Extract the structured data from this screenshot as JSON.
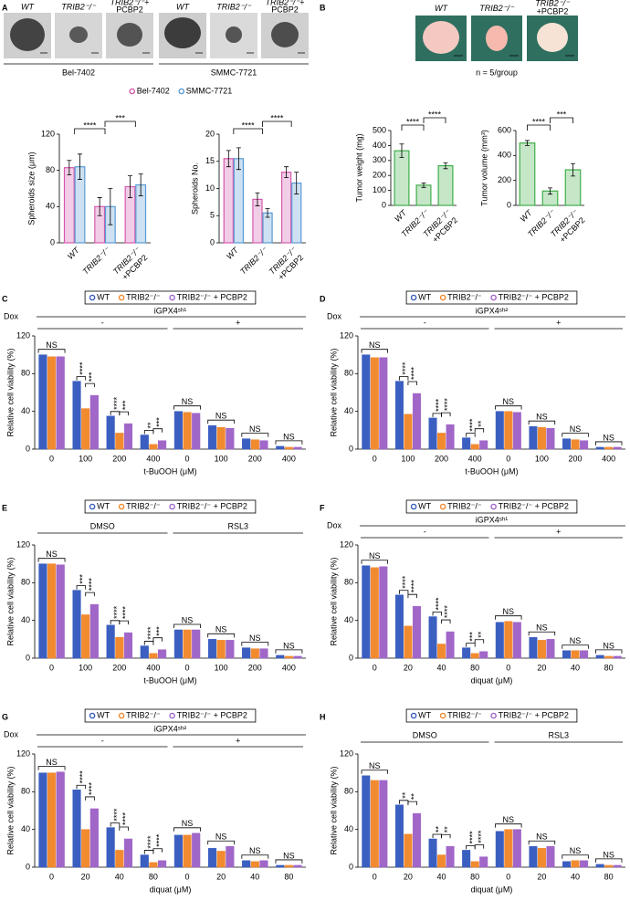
{
  "panel_labels": [
    "A",
    "B",
    "C",
    "D",
    "E",
    "F",
    "G",
    "H"
  ],
  "panel_a": {
    "image_labels": [
      [
        "WT"
      ],
      [
        "TRIB2⁻/⁻"
      ],
      [
        "TRIB2⁻/⁻+",
        "PCBP2"
      ],
      [
        "WT"
      ],
      [
        "TRIB2⁻/⁻"
      ],
      [
        "TRIB2⁻/⁻+",
        "PCBP2"
      ]
    ],
    "cell_lines": [
      "Bel-7402",
      "SMMC-7721"
    ]
  },
  "panel_b": {
    "image_labels": [
      [
        "WT"
      ],
      [
        "TRIB2⁻/⁻"
      ],
      [
        "TRIB2⁻/⁻",
        "+PCBP2"
      ]
    ],
    "note": "n = 5/group"
  },
  "chart_data": [
    {
      "type": "bar",
      "y_label": "Spheroids size (μm)",
      "categories": [
        "WT",
        "TRIB2⁻/⁻",
        [
          "TRIB2⁻/⁻",
          "+PCBP2"
        ]
      ],
      "series": [
        {
          "name": "Bel-7402",
          "color": "#d45aae",
          "values": [
            83,
            40,
            62
          ],
          "errors": [
            8,
            10,
            12
          ]
        },
        {
          "name": "SMMC-7721",
          "color": "#5b9bd5",
          "values": [
            84,
            40,
            64
          ],
          "errors": [
            14,
            20,
            12
          ]
        }
      ],
      "ylim": [
        0,
        120
      ],
      "yticks": [
        0,
        40,
        80,
        120
      ],
      "bar_style": "outline",
      "rotate_x_labels": true,
      "significance": [
        "****",
        "***"
      ],
      "legend": "top"
    },
    {
      "type": "bar",
      "y_label": "Spheroids No.",
      "categories": [
        "WT",
        "TRIB2⁻/⁻",
        [
          "TRIB2⁻/⁻",
          "+PCBP2"
        ]
      ],
      "series": [
        {
          "name": "Bel-7402",
          "color": "#d45aae",
          "values": [
            15.5,
            8,
            13
          ],
          "errors": [
            1.5,
            1.2,
            1
          ]
        },
        {
          "name": "SMMC-7721",
          "color": "#5b9bd5",
          "values": [
            15.5,
            5.5,
            11
          ],
          "errors": [
            2,
            0.8,
            2
          ]
        }
      ],
      "ylim": [
        0,
        20
      ],
      "yticks": [
        0,
        5,
        10,
        15,
        20
      ],
      "bar_style": "outline",
      "rotate_x_labels": true,
      "significance": [
        "****",
        "****"
      ]
    },
    {
      "type": "bar",
      "y_label": "Tumor weight (mg)",
      "categories": [
        "WT",
        "TRIB2⁻/⁻",
        [
          "TRIB2⁻/⁻",
          "+PCBP2"
        ]
      ],
      "values": [
        365,
        135,
        265
      ],
      "errors": [
        45,
        15,
        20
      ],
      "color": "#3fae49",
      "ylim": [
        0,
        500
      ],
      "yticks": [
        0,
        100,
        200,
        300,
        400,
        500
      ],
      "bar_style": "outline",
      "rotate_x_labels": true,
      "significance": [
        "****",
        "****"
      ]
    },
    {
      "type": "bar",
      "y_label": "Tumor volume (mm³)",
      "categories": [
        "WT",
        "TRIB2⁻/⁻",
        [
          "TRIB2⁻/⁻",
          "+PCBP2"
        ]
      ],
      "values": [
        500,
        115,
        285
      ],
      "errors": [
        20,
        25,
        50
      ],
      "color": "#3fae49",
      "ylim": [
        0,
        600
      ],
      "yticks": [
        0,
        200,
        400,
        600
      ],
      "bar_style": "outline",
      "rotate_x_labels": true,
      "significance": [
        "****",
        "***"
      ]
    },
    {
      "type": "bar",
      "y_label": "Relative cell viability (%)",
      "x_label": "t-BuOOH (μM)",
      "categories": [
        "0",
        "100",
        "200",
        "400",
        "0",
        "100",
        "200",
        "400"
      ],
      "series": [
        {
          "name": "WT",
          "color": "#3b5fc0",
          "values": [
            100,
            72,
            35,
            15,
            40,
            25,
            11,
            3
          ]
        },
        {
          "name": "TRIB2⁻/⁻",
          "color": "#f28a30",
          "values": [
            98,
            43,
            17,
            5,
            39,
            23,
            10,
            2
          ]
        },
        {
          "name": "TRIB2⁻/⁻ + PCBP2",
          "color": "#a066c8",
          "values": [
            98,
            57,
            27,
            9,
            38,
            22,
            9,
            2
          ]
        }
      ],
      "ylim": [
        0,
        120
      ],
      "yticks": [
        0,
        40,
        80,
        120
      ],
      "bar_style": "solid",
      "group_prefix": "Dox",
      "group_title": "iGPX4ˢʰ¹",
      "groups": [
        "-",
        "+"
      ],
      "significance": [
        [
          "NS"
        ],
        [
          "****",
          "***"
        ],
        [
          "****",
          "***"
        ],
        [
          "**",
          "***"
        ],
        [
          "NS"
        ],
        [
          "NS"
        ],
        [
          "NS"
        ],
        [
          "NS"
        ]
      ],
      "legend": "top"
    },
    {
      "type": "bar",
      "y_label": "Relative cell viability (%)",
      "x_label": "t-BuOOH (μM)",
      "categories": [
        "0",
        "100",
        "200",
        "400",
        "0",
        "100",
        "200",
        "400"
      ],
      "series": [
        {
          "name": "WT",
          "color": "#3b5fc0",
          "values": [
            100,
            72,
            33,
            12,
            40,
            24,
            11,
            2
          ]
        },
        {
          "name": "TRIB2⁻/⁻",
          "color": "#f28a30",
          "values": [
            97,
            37,
            17,
            5,
            40,
            23,
            10,
            2
          ]
        },
        {
          "name": "TRIB2⁻/⁻ + PCBP2",
          "color": "#a066c8",
          "values": [
            97,
            59,
            26,
            9,
            39,
            22,
            9,
            2
          ]
        }
      ],
      "ylim": [
        0,
        120
      ],
      "yticks": [
        0,
        40,
        80,
        120
      ],
      "bar_style": "solid",
      "group_prefix": "Dox",
      "group_title": "iGPX4ˢʰ²",
      "groups": [
        "-",
        "+"
      ],
      "significance": [
        [
          "NS"
        ],
        [
          "****",
          "****"
        ],
        [
          "****",
          "****"
        ],
        [
          "****",
          "**"
        ],
        [
          "NS"
        ],
        [
          "NS"
        ],
        [
          "NS"
        ],
        [
          "NS"
        ]
      ],
      "legend": "top"
    },
    {
      "type": "bar",
      "y_label": "Relative cell viability (%)",
      "x_label": "t-BuOOH (μM)",
      "categories": [
        "0",
        "100",
        "200",
        "400",
        "0",
        "100",
        "200",
        "400"
      ],
      "series": [
        {
          "name": "WT",
          "color": "#3b5fc0",
          "values": [
            100,
            72,
            35,
            13,
            30,
            20,
            11,
            3
          ]
        },
        {
          "name": "TRIB2⁻/⁻",
          "color": "#f28a30",
          "values": [
            100,
            46,
            22,
            5,
            30,
            19,
            10,
            2
          ]
        },
        {
          "name": "TRIB2⁻/⁻ + PCBP2",
          "color": "#a066c8",
          "values": [
            99,
            57,
            27,
            9,
            30,
            19,
            10,
            2
          ]
        }
      ],
      "ylim": [
        0,
        120
      ],
      "yticks": [
        0,
        40,
        80,
        120
      ],
      "bar_style": "solid",
      "groups": [
        "DMSO",
        "RSL3"
      ],
      "significance": [
        [
          "NS"
        ],
        [
          "***",
          "****"
        ],
        [
          "****",
          "****"
        ],
        [
          "****",
          "***"
        ],
        [
          "NS"
        ],
        [
          "NS"
        ],
        [
          "NS"
        ],
        [
          "NS"
        ]
      ],
      "legend": "top"
    },
    {
      "type": "bar",
      "y_label": "Relative cell viability (%)",
      "x_label": "diquat (μM)",
      "categories": [
        "0",
        "20",
        "40",
        "80",
        "0",
        "20",
        "40",
        "80"
      ],
      "series": [
        {
          "name": "WT",
          "color": "#3b5fc0",
          "values": [
            98,
            67,
            44,
            11,
            38,
            22,
            8,
            3
          ]
        },
        {
          "name": "TRIB2⁻/⁻",
          "color": "#f28a30",
          "values": [
            96,
            34,
            15,
            5,
            39,
            19,
            8,
            2
          ]
        },
        {
          "name": "TRIB2⁻/⁻ + PCBP2",
          "color": "#a066c8",
          "values": [
            97,
            55,
            28,
            7,
            38,
            20,
            8,
            2
          ]
        }
      ],
      "ylim": [
        0,
        120
      ],
      "yticks": [
        0,
        40,
        80,
        120
      ],
      "bar_style": "solid",
      "group_prefix": "Dox",
      "group_title": "iGPX4ˢʰ¹",
      "groups": [
        "-",
        "+"
      ],
      "significance": [
        [
          "NS"
        ],
        [
          "****",
          "****"
        ],
        [
          "****",
          "****"
        ],
        [
          "***",
          "**"
        ],
        [
          "NS"
        ],
        [
          "NS"
        ],
        [
          "NS"
        ],
        [
          "NS"
        ]
      ],
      "legend": "top"
    },
    {
      "type": "bar",
      "y_label": "Relative cell viability (%)",
      "x_label": "diquat (μM)",
      "categories": [
        "0",
        "20",
        "40",
        "80",
        "0",
        "20",
        "40",
        "80"
      ],
      "series": [
        {
          "name": "WT",
          "color": "#3b5fc0",
          "values": [
            100,
            82,
            42,
            13,
            34,
            20,
            7,
            2
          ]
        },
        {
          "name": "TRIB2⁻/⁻",
          "color": "#f28a30",
          "values": [
            100,
            40,
            18,
            5,
            34,
            17,
            6,
            2
          ]
        },
        {
          "name": "TRIB2⁻/⁻ + PCBP2",
          "color": "#a066c8",
          "values": [
            101,
            62,
            30,
            7,
            36,
            22,
            7,
            2
          ]
        }
      ],
      "ylim": [
        0,
        120
      ],
      "yticks": [
        0,
        40,
        80,
        120
      ],
      "bar_style": "solid",
      "group_prefix": "Dox",
      "group_title": "iGPX4ˢʰ²",
      "groups": [
        "-",
        "+"
      ],
      "significance": [
        [
          "NS"
        ],
        [
          "****",
          "****"
        ],
        [
          "****",
          "****"
        ],
        [
          "****",
          "****"
        ],
        [
          "NS"
        ],
        [
          "NS"
        ],
        [
          "NS"
        ],
        [
          "NS"
        ]
      ],
      "legend": "top"
    },
    {
      "type": "bar",
      "y_label": "Relative cell viability (%)",
      "x_label": "diquat (μM)",
      "categories": [
        "0",
        "20",
        "40",
        "80",
        "0",
        "20",
        "40",
        "80"
      ],
      "series": [
        {
          "name": "WT",
          "color": "#3b5fc0",
          "values": [
            97,
            66,
            30,
            18,
            38,
            22,
            6,
            3
          ]
        },
        {
          "name": "TRIB2⁻/⁻",
          "color": "#f28a30",
          "values": [
            92,
            35,
            13,
            6,
            40,
            20,
            7,
            2
          ]
        },
        {
          "name": "TRIB2⁻/⁻ + PCBP2",
          "color": "#a066c8",
          "values": [
            92,
            57,
            22,
            11,
            40,
            22,
            7,
            2
          ]
        }
      ],
      "ylim": [
        0,
        120
      ],
      "yticks": [
        0,
        40,
        80,
        120
      ],
      "bar_style": "solid",
      "groups": [
        "DMSO",
        "RSL3"
      ],
      "significance": [
        [
          "NS"
        ],
        [
          "**",
          "**"
        ],
        [
          "**",
          "**"
        ],
        [
          "****",
          "****"
        ],
        [
          "NS"
        ],
        [
          "NS"
        ],
        [
          "NS"
        ],
        [
          "NS"
        ]
      ],
      "legend": "top"
    }
  ]
}
